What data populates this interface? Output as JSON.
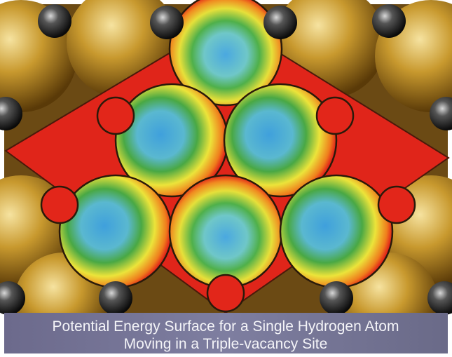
{
  "caption": {
    "lines": [
      "Potential Energy Surface for a Single Hydrogen Atom",
      "Moving in a Triple-vacancy Site"
    ]
  }
}
